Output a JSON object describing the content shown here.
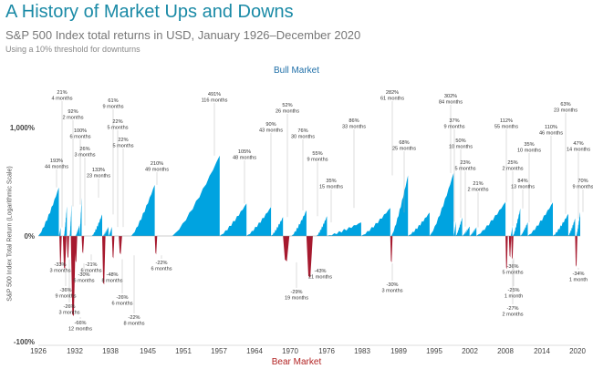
{
  "chart_data": {
    "type": "area",
    "title": "A History of Market Ups and Downs",
    "subtitle": "S&P 500 Index total returns in USD, January 1926–December 2020",
    "note": "Using a 10% threshold for downturns",
    "top_label": "Bull Market",
    "bottom_label": "Bear Market",
    "ylabel": "S&P 500 Index Total Return (Logarithmic Scale)",
    "yticks": [
      {
        "label": "1,000%",
        "value": 1000
      },
      {
        "label": "0%",
        "value": 0
      },
      {
        "label": "-100%",
        "value": -100
      }
    ],
    "xlim": [
      1926,
      2021
    ],
    "xticks": [
      "1926",
      "1932",
      "1938",
      "1945",
      "1951",
      "1957",
      "1964",
      "1970",
      "1976",
      "1983",
      "1989",
      "1995",
      "2002",
      "2008",
      "2014",
      "2020"
    ],
    "colors": {
      "bull": "#00a3e0",
      "bear": "#a6192e",
      "title": "#1a8aa6"
    },
    "bull_markets": [
      {
        "start": 1926.0,
        "return_label": "193%",
        "duration": "44 months",
        "value": 193
      },
      {
        "start": 1929.6,
        "return_label": "21%",
        "duration": "4 months",
        "value": 21
      },
      {
        "start": 1930.5,
        "return_label": "92%",
        "duration": "2 months",
        "value": 92
      },
      {
        "start": 1931.5,
        "return_label": "100%",
        "duration": "6 months",
        "value": 100
      },
      {
        "start": 1932.5,
        "return_label": "26%",
        "duration": "3 months",
        "value": 26
      },
      {
        "start": 1933.2,
        "return_label": "133%",
        "duration": "23 months",
        "value": 133
      },
      {
        "start": 1935.4,
        "return_label": "61%",
        "duration": "9 months",
        "value": 61
      },
      {
        "start": 1937.3,
        "return_label": "22%",
        "duration": "5 months",
        "value": 22
      },
      {
        "start": 1938.3,
        "return_label": "22%",
        "duration": "5 months",
        "value": 22
      },
      {
        "start": 1942.3,
        "return_label": "210%",
        "duration": "49 months",
        "value": 210
      },
      {
        "start": 1949.5,
        "return_label": "491%",
        "duration": "116 months",
        "value": 491
      },
      {
        "start": 1957.8,
        "return_label": "105%",
        "duration": "48 months",
        "value": 105
      },
      {
        "start": 1962.5,
        "return_label": "90%",
        "duration": "43 months",
        "value": 90
      },
      {
        "start": 1966.8,
        "return_label": "52%",
        "duration": "26 months",
        "value": 52
      },
      {
        "start": 1970.4,
        "return_label": "76%",
        "duration": "30 months",
        "value": 76
      },
      {
        "start": 1974.8,
        "return_label": "55%",
        "duration": "9 months",
        "value": 55
      },
      {
        "start": 1976.6,
        "return_label": "35%",
        "duration": "15 months",
        "value": 35
      },
      {
        "start": 1982.6,
        "return_label": "86%",
        "duration": "33 months",
        "value": 86
      },
      {
        "start": 1987.9,
        "return_label": "282%",
        "duration": "61 months",
        "value": 282
      },
      {
        "start": 1990.8,
        "return_label": "68%",
        "duration": "25 months",
        "value": 68
      },
      {
        "start": 1994.6,
        "return_label": "302%",
        "duration": "84 months",
        "value": 302
      },
      {
        "start": 1998.8,
        "return_label": "37%",
        "duration": "9 months",
        "value": 37
      },
      {
        "start": 1999.2,
        "return_label": "50%",
        "duration": "10 months",
        "value": 50
      },
      {
        "start": 2000.3,
        "return_label": "23%",
        "duration": "5 months",
        "value": 23
      },
      {
        "start": 2001.6,
        "return_label": "21%",
        "duration": "2 months",
        "value": 21
      },
      {
        "start": 2002.8,
        "return_label": "112%",
        "duration": "55 months",
        "value": 112
      },
      {
        "start": 2008.8,
        "return_label": "25%",
        "duration": "2 months",
        "value": 25
      },
      {
        "start": 2009.2,
        "return_label": "84%",
        "duration": "13 months",
        "value": 84
      },
      {
        "start": 2010.5,
        "return_label": "35%",
        "duration": "10 months",
        "value": 35
      },
      {
        "start": 2011.8,
        "return_label": "110%",
        "duration": "46 months",
        "value": 110
      },
      {
        "start": 2016.2,
        "return_label": "63%",
        "duration": "23 months",
        "value": 63
      },
      {
        "start": 2018.9,
        "return_label": "47%",
        "duration": "14 months",
        "value": 47
      },
      {
        "start": 2020.3,
        "return_label": "70%",
        "duration": "9 months",
        "value": 70
      }
    ],
    "bear_markets": [
      {
        "start": 1929.7,
        "return_label": "-33%",
        "duration": "3 months",
        "value": -33
      },
      {
        "start": 1930.3,
        "return_label": "-36%",
        "duration": "9 months",
        "value": -36
      },
      {
        "start": 1931.0,
        "return_label": "-26%",
        "duration": "3 months",
        "value": -26
      },
      {
        "start": 1931.7,
        "return_label": "-66%",
        "duration": "12 months",
        "value": -66
      },
      {
        "start": 1932.4,
        "return_label": "-30%",
        "duration": "6 months",
        "value": -30
      },
      {
        "start": 1933.6,
        "return_label": "-21%",
        "duration": "6 months",
        "value": -21
      },
      {
        "start": 1937.2,
        "return_label": "-48%",
        "duration": "8 months",
        "value": -48
      },
      {
        "start": 1938.9,
        "return_label": "-26%",
        "duration": "6 months",
        "value": -26
      },
      {
        "start": 1940.1,
        "return_label": "-22%",
        "duration": "8 months",
        "value": -22
      },
      {
        "start": 1946.4,
        "return_label": "-22%",
        "duration": "6 months",
        "value": -22
      },
      {
        "start": 1968.9,
        "return_label": "-29%",
        "duration": "19 months",
        "value": -29
      },
      {
        "start": 1973.0,
        "return_label": "-43%",
        "duration": "21 months",
        "value": -43
      },
      {
        "start": 1987.7,
        "return_label": "-30%",
        "duration": "3 months",
        "value": -30
      },
      {
        "start": 2007.9,
        "return_label": "-36%",
        "duration": "5 months",
        "value": -36
      },
      {
        "start": 2008.5,
        "return_label": "-25%",
        "duration": "1 month",
        "value": -25
      },
      {
        "start": 2008.9,
        "return_label": "-27%",
        "duration": "2 months",
        "value": -27
      },
      {
        "start": 2020.1,
        "return_label": "-34%",
        "duration": "1 month",
        "value": -34
      }
    ]
  }
}
